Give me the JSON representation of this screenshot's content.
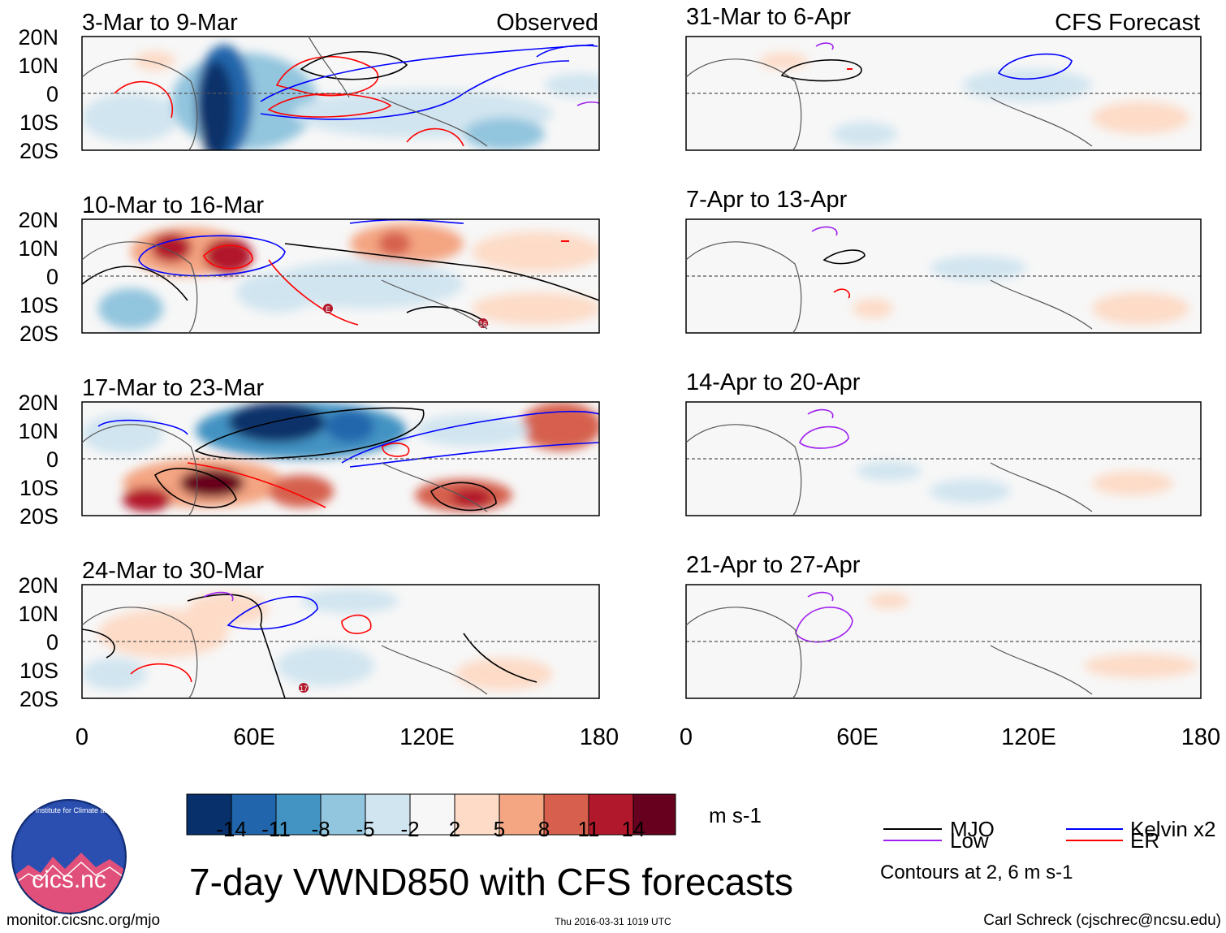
{
  "panels": [
    {
      "id": "p1",
      "title": "3-Mar to 9-Mar",
      "label": "Observed"
    },
    {
      "id": "p2",
      "title": "10-Mar to 16-Mar"
    },
    {
      "id": "p3",
      "title": "17-Mar to 23-Mar"
    },
    {
      "id": "p4",
      "title": "24-Mar to 30-Mar"
    },
    {
      "id": "p5",
      "title": "31-Mar to 6-Apr",
      "label": "CFS Forecast"
    },
    {
      "id": "p6",
      "title": "7-Apr to 13-Apr"
    },
    {
      "id": "p7",
      "title": "14-Apr to 20-Apr"
    },
    {
      "id": "p8",
      "title": "21-Apr to 27-Apr"
    }
  ],
  "lat_labels": [
    "20N",
    "10N",
    "0",
    "10S",
    "20S"
  ],
  "lon_labels": [
    "0",
    "60E",
    "120E",
    "180"
  ],
  "colorbar": {
    "ticks": [
      "-14",
      "-11",
      "-8",
      "-5",
      "-2",
      "2",
      "5",
      "8",
      "11",
      "14"
    ],
    "colors": [
      "#08306b",
      "#2166ac",
      "#4393c3",
      "#92c5de",
      "#d1e5f0",
      "#f7f7f7",
      "#fddbc7",
      "#f4a582",
      "#d6604d",
      "#b2182b",
      "#67001f"
    ],
    "unit": "m s-1"
  },
  "legend": {
    "items": [
      {
        "label": "MJO",
        "color": "#000000"
      },
      {
        "label": "Kelvin x2",
        "color": "#0000ff"
      },
      {
        "label": "Low",
        "color": "#a020f0"
      },
      {
        "label": "ER",
        "color": "#ff0000"
      }
    ],
    "contours_note": "Contours at 2, 6 m s-1"
  },
  "main_title": "7-day VWND850 with CFS forecasts",
  "logo_text": "cics.nc",
  "logo_ring_text": "Cooperative Institute for Climate and Satellites",
  "footer": {
    "url": "monitor.cicsnc.org/mjo",
    "timestamp": "Thu 2016-03-31 1019 UTC",
    "author": "Carl Schreck (cjschrec@ncsu.edu)"
  },
  "storm_markers": [
    {
      "panel": "p2",
      "label": "E"
    },
    {
      "panel": "p2",
      "label": "16"
    },
    {
      "panel": "p4",
      "label": "17"
    }
  ]
}
